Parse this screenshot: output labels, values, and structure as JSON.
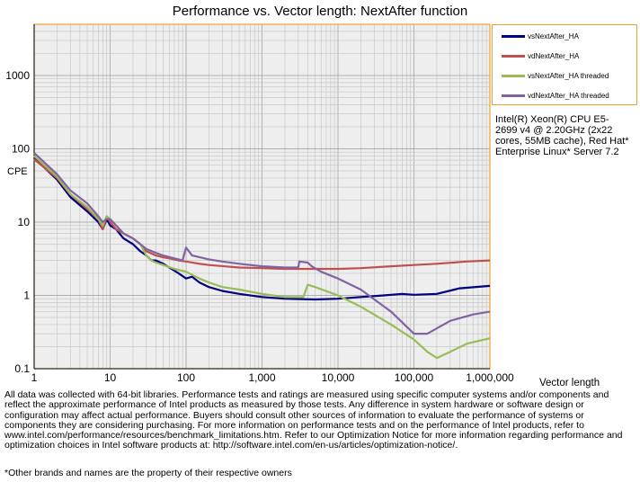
{
  "chart_data": {
    "type": "line",
    "title": "Performance vs. Vector length: NextAfter function",
    "xlabel": "Vector length",
    "ylabel": "CPE",
    "xscale": "log",
    "yscale": "log",
    "xlim": [
      1,
      1000000
    ],
    "ylim": [
      0.1,
      5000
    ],
    "x_ticks": [
      "1",
      "10",
      "100",
      "1,000",
      "10,000",
      "100,000",
      "1,000,000"
    ],
    "y_ticks": [
      "0.1",
      "1",
      "10",
      "100",
      "1000"
    ],
    "grid": true,
    "legend_position": "top-right",
    "series": [
      {
        "name": "vsNextAfter_HA",
        "color": "#000080",
        "points": [
          [
            1,
            75
          ],
          [
            2,
            38
          ],
          [
            3,
            22
          ],
          [
            5,
            14
          ],
          [
            7,
            10
          ],
          [
            8,
            8
          ],
          [
            9,
            11
          ],
          [
            10,
            9
          ],
          [
            12,
            8
          ],
          [
            15,
            6
          ],
          [
            20,
            5
          ],
          [
            25,
            4
          ],
          [
            30,
            3.5
          ],
          [
            35,
            3
          ],
          [
            40,
            3
          ],
          [
            50,
            2.7
          ],
          [
            60,
            2.4
          ],
          [
            80,
            2
          ],
          [
            100,
            1.7
          ],
          [
            120,
            1.8
          ],
          [
            150,
            1.5
          ],
          [
            200,
            1.3
          ],
          [
            300,
            1.15
          ],
          [
            500,
            1.05
          ],
          [
            1000,
            0.95
          ],
          [
            2000,
            0.9
          ],
          [
            5000,
            0.88
          ],
          [
            10000,
            0.9
          ],
          [
            20000,
            0.95
          ],
          [
            40000,
            1.0
          ],
          [
            70000,
            1.05
          ],
          [
            100000,
            1.02
          ],
          [
            200000,
            1.05
          ],
          [
            400000,
            1.25
          ],
          [
            1000000,
            1.35
          ]
        ]
      },
      {
        "name": "vdNextAfter_HA",
        "color": "#c0504d",
        "points": [
          [
            1,
            72
          ],
          [
            2,
            40
          ],
          [
            3,
            24
          ],
          [
            5,
            15
          ],
          [
            7,
            11
          ],
          [
            8,
            8
          ],
          [
            9,
            12
          ],
          [
            10,
            10
          ],
          [
            12,
            8
          ],
          [
            15,
            7
          ],
          [
            20,
            6
          ],
          [
            25,
            5
          ],
          [
            30,
            4
          ],
          [
            40,
            3.5
          ],
          [
            50,
            3.3
          ],
          [
            60,
            3.2
          ],
          [
            80,
            3
          ],
          [
            100,
            2.9
          ],
          [
            150,
            2.7
          ],
          [
            200,
            2.6
          ],
          [
            500,
            2.4
          ],
          [
            1000,
            2.35
          ],
          [
            2000,
            2.3
          ],
          [
            5000,
            2.3
          ],
          [
            10000,
            2.3
          ],
          [
            20000,
            2.35
          ],
          [
            50000,
            2.5
          ],
          [
            100000,
            2.6
          ],
          [
            200000,
            2.7
          ],
          [
            500000,
            2.9
          ],
          [
            1000000,
            3.0
          ]
        ]
      },
      {
        "name": "vsNextAfter_HA threaded",
        "color": "#9bbb59",
        "points": [
          [
            1,
            80
          ],
          [
            2,
            42
          ],
          [
            3,
            24
          ],
          [
            5,
            16
          ],
          [
            7,
            11
          ],
          [
            8,
            9
          ],
          [
            9,
            12
          ],
          [
            10,
            11
          ],
          [
            12,
            9
          ],
          [
            15,
            7
          ],
          [
            20,
            6
          ],
          [
            25,
            5
          ],
          [
            30,
            3.5
          ],
          [
            35,
            3
          ],
          [
            40,
            2.8
          ],
          [
            50,
            2.6
          ],
          [
            70,
            2.3
          ],
          [
            100,
            2.1
          ],
          [
            150,
            1.7
          ],
          [
            200,
            1.5
          ],
          [
            300,
            1.3
          ],
          [
            500,
            1.2
          ],
          [
            1000,
            1.05
          ],
          [
            2000,
            0.95
          ],
          [
            3500,
            0.95
          ],
          [
            4000,
            1.4
          ],
          [
            5000,
            1.3
          ],
          [
            10000,
            1.0
          ],
          [
            20000,
            0.7
          ],
          [
            50000,
            0.4
          ],
          [
            100000,
            0.25
          ],
          [
            150000,
            0.17
          ],
          [
            200000,
            0.14
          ],
          [
            300000,
            0.17
          ],
          [
            500000,
            0.22
          ],
          [
            1000000,
            0.26
          ]
        ]
      },
      {
        "name": "vdNextAfter_HA threaded",
        "color": "#8064a2",
        "points": [
          [
            1,
            88
          ],
          [
            2,
            45
          ],
          [
            3,
            27
          ],
          [
            5,
            18
          ],
          [
            7,
            12
          ],
          [
            8,
            10
          ],
          [
            9,
            11
          ],
          [
            10,
            11
          ],
          [
            12,
            9
          ],
          [
            15,
            7
          ],
          [
            20,
            6
          ],
          [
            25,
            5
          ],
          [
            30,
            4.3
          ],
          [
            40,
            3.8
          ],
          [
            50,
            3.5
          ],
          [
            70,
            3.2
          ],
          [
            90,
            3
          ],
          [
            100,
            4.5
          ],
          [
            120,
            3.5
          ],
          [
            200,
            3.1
          ],
          [
            300,
            2.9
          ],
          [
            500,
            2.7
          ],
          [
            1000,
            2.5
          ],
          [
            2000,
            2.4
          ],
          [
            3000,
            2.4
          ],
          [
            3100,
            2.9
          ],
          [
            4000,
            2.8
          ],
          [
            4500,
            2.5
          ],
          [
            6000,
            2.1
          ],
          [
            10000,
            1.7
          ],
          [
            20000,
            1.2
          ],
          [
            50000,
            0.6
          ],
          [
            100000,
            0.3
          ],
          [
            150000,
            0.3
          ],
          [
            300000,
            0.45
          ],
          [
            600000,
            0.55
          ],
          [
            1000000,
            0.6
          ]
        ]
      }
    ]
  },
  "legend": {
    "items": [
      {
        "label": "vsNextAfter_HA",
        "color": "#000080"
      },
      {
        "label": "vdNextAfter_HA",
        "color": "#c0504d"
      },
      {
        "label": "vsNextAfter_HA threaded",
        "color": "#9bbb59"
      },
      {
        "label": "vdNextAfter_HA threaded",
        "color": "#8064a2"
      }
    ]
  },
  "annotation": "Intel(R) Xeon(R) CPU E5-2699 v4 @ 2.20GHz (2x22 cores, 55MB cache), Red Hat* Enterprise Linux* Server 7.2",
  "footnote": "All data was collected with 64-bit libraries. Performance tests and ratings are measured using specific computer systems and/or components and reflect the approximate performance of Intel products as measured by those tests. Any difference in system hardware or software design or configuration may affect actual performance. Buyers should consult other sources of information to evaluate the performance of systems or components they are considering purchasing. For more information on performance tests and on the performance of Intel products, refer to www.intel.com/performance/resources/benchmark_limitations.htm. Refer to our Optimization Notice for more information regarding performance and optimization choices in Intel software products at: http://software.intel.com/en-us/articles/optimization-notice/.",
  "trademark": "*Other brands and names are the property of their respective owners"
}
